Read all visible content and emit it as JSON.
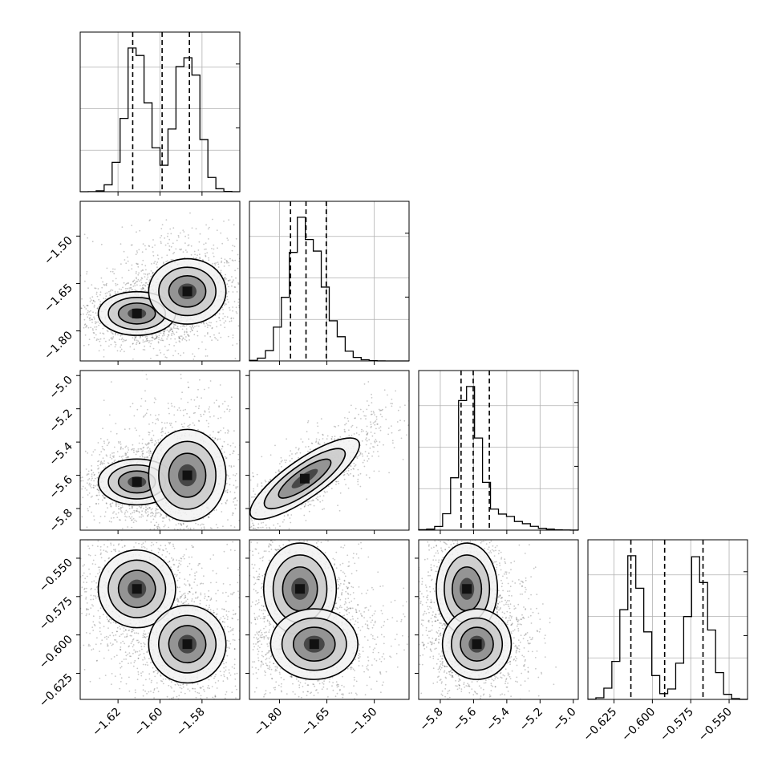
{
  "chart_data": {
    "type": "corner",
    "grid": true,
    "parameters": [
      {
        "ticks": [
          -1.62,
          -1.6,
          -1.58
        ],
        "tick_labels": [
          "−1.62",
          "−1.60",
          "−1.58"
        ],
        "range": [
          -1.638,
          -1.562
        ],
        "quantiles": [
          -1.613,
          -1.599,
          -1.586
        ],
        "modes": [
          {
            "mean": -1.611,
            "sd": 0.0055,
            "w": 0.5
          },
          {
            "mean": -1.587,
            "sd": 0.0055,
            "w": 0.5
          }
        ]
      },
      {
        "ticks": [
          -1.8,
          -1.65,
          -1.5
        ],
        "tick_labels": [
          "−1.80",
          "−1.65",
          "−1.50"
        ],
        "range": [
          -1.895,
          -1.39
        ],
        "quantiles": [
          -1.765,
          -1.716,
          -1.652
        ],
        "modes": [
          {
            "mean": -1.735,
            "sd": 0.045,
            "w": 0.55
          },
          {
            "mean": -1.685,
            "sd": 0.055,
            "w": 0.45
          }
        ]
      },
      {
        "ticks": [
          -5.8,
          -5.6,
          -5.4,
          -5.2,
          -5.0
        ],
        "tick_labels": [
          "−5.8",
          "−5.6",
          "−5.4",
          "−5.2",
          "−5.0"
        ],
        "range": [
          -5.93,
          -4.97
        ],
        "quantiles": [
          -5.675,
          -5.602,
          -5.505
        ],
        "modes": [
          {
            "mean": -5.63,
            "sd": 0.06,
            "w": 0.75
          },
          {
            "mean": -5.5,
            "sd": 0.15,
            "w": 0.25
          }
        ]
      },
      {
        "ticks": [
          -0.625,
          -0.6,
          -0.575,
          -0.55
        ],
        "tick_labels": [
          "−0.625",
          "−0.600",
          "−0.575",
          "−0.550"
        ],
        "range": [
          -0.642,
          -0.538
        ],
        "quantiles": [
          -0.614,
          -0.592,
          -0.567
        ],
        "modes": [
          {
            "mean": -0.612,
            "sd": 0.0075,
            "w": 0.5
          },
          {
            "mean": -0.57,
            "sd": 0.0075,
            "w": 0.5
          }
        ]
      }
    ],
    "pair_modes": [
      {
        "row": 1,
        "col": 0,
        "modes": [
          {
            "x": -1.611,
            "y": -1.745,
            "rx": 0.008,
            "ry": 0.03,
            "rot": 0
          },
          {
            "x": -1.587,
            "y": -1.675,
            "rx": 0.008,
            "ry": 0.045,
            "rot": 0
          }
        ]
      },
      {
        "row": 2,
        "col": 0,
        "modes": [
          {
            "x": -1.611,
            "y": -5.64,
            "rx": 0.008,
            "ry": 0.06,
            "rot": 0
          },
          {
            "x": -1.587,
            "y": -5.6,
            "rx": 0.008,
            "ry": 0.12,
            "rot": 0
          }
        ]
      },
      {
        "row": 2,
        "col": 1,
        "modes": [
          {
            "x": -1.72,
            "y": -5.62,
            "rx": 0.09,
            "ry": 0.05,
            "rot": -35
          }
        ]
      },
      {
        "row": 3,
        "col": 0,
        "modes": [
          {
            "x": -1.611,
            "y": -0.57,
            "rx": 0.008,
            "ry": 0.011,
            "rot": -20
          },
          {
            "x": -1.587,
            "y": -0.606,
            "rx": 0.008,
            "ry": 0.011,
            "rot": -20
          }
        ]
      },
      {
        "row": 3,
        "col": 1,
        "modes": [
          {
            "x": -1.735,
            "y": -0.57,
            "rx": 0.05,
            "ry": 0.013,
            "rot": 0
          },
          {
            "x": -1.69,
            "y": -0.606,
            "rx": 0.06,
            "ry": 0.01,
            "rot": 0
          }
        ]
      },
      {
        "row": 3,
        "col": 2,
        "modes": [
          {
            "x": -5.64,
            "y": -0.57,
            "rx": 0.08,
            "ry": 0.013,
            "rot": 0
          },
          {
            "x": -5.58,
            "y": -0.606,
            "rx": 0.09,
            "ry": 0.01,
            "rot": 0
          }
        ]
      }
    ]
  }
}
